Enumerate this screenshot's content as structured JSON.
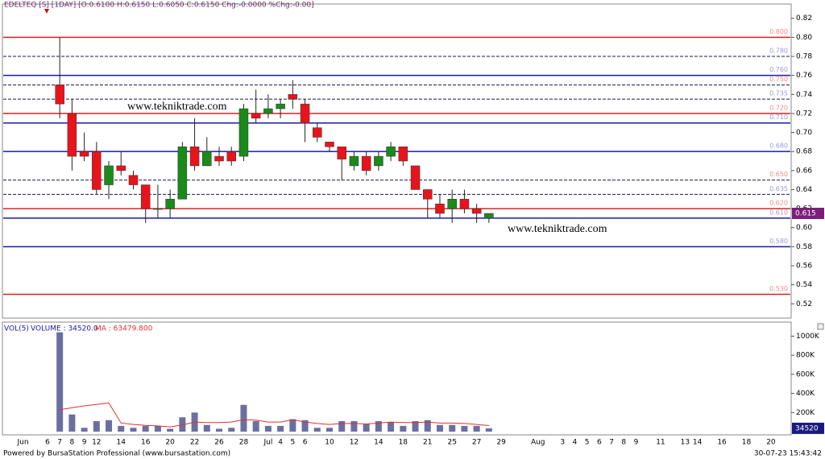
{
  "chart_data": [
    {
      "type": "candlestick",
      "title": "EDELTEQ [S] [1DAY] [O:0.6100 H:0.6150 L:0.6050 C:0.6150 Chg:-0.0000 %Chg:-0.00]",
      "categories": [
        "Jun",
        null,
        "6",
        "7",
        "8",
        "9",
        "12",
        null,
        "14",
        null,
        "16",
        null,
        "20",
        null,
        "22",
        null,
        "26",
        null,
        "28",
        null,
        "Jul",
        "4",
        "5",
        "6",
        null,
        "10",
        null,
        "12",
        null,
        "14",
        null,
        "18",
        null,
        "21",
        null,
        "25",
        null,
        "27",
        null,
        "29",
        null,
        null,
        "Aug",
        null,
        "3",
        "4",
        "5",
        "6",
        "7",
        "8",
        "9",
        null,
        "11",
        null,
        "13",
        "14",
        null,
        "16",
        null,
        "18",
        null,
        "20"
      ],
      "open": [
        null,
        null,
        null,
        0.75,
        0.72,
        0.68,
        0.68,
        0.645,
        0.665,
        0.655,
        0.645,
        0.62,
        0.62,
        0.63,
        0.685,
        0.665,
        0.675,
        0.68,
        0.675,
        0.72,
        0.72,
        0.725,
        0.74,
        0.73,
        0.705,
        0.69,
        0.685,
        0.665,
        0.675,
        0.665,
        0.675,
        0.685,
        0.665,
        0.64,
        0.625,
        0.62,
        0.63,
        0.62,
        0.61,
        null,
        null,
        null,
        null,
        null,
        null,
        null,
        null,
        null,
        null,
        null,
        null,
        null,
        null,
        null,
        null,
        null,
        null,
        null,
        null,
        null,
        null,
        null
      ],
      "high": [
        null,
        null,
        null,
        0.8,
        0.735,
        0.7,
        0.69,
        0.67,
        0.68,
        0.66,
        0.645,
        0.645,
        0.64,
        0.69,
        0.715,
        0.695,
        0.685,
        0.685,
        0.73,
        0.745,
        0.74,
        0.735,
        0.755,
        0.735,
        0.71,
        0.69,
        0.685,
        0.68,
        0.68,
        0.68,
        0.69,
        0.685,
        0.665,
        0.64,
        0.635,
        0.64,
        0.64,
        0.625,
        0.615,
        null,
        null,
        null,
        null,
        null,
        null,
        null,
        null,
        null,
        null,
        null,
        null,
        null,
        null,
        null,
        null,
        null,
        null,
        null,
        null,
        null,
        null,
        null
      ],
      "low": [
        null,
        null,
        null,
        0.715,
        0.66,
        0.67,
        0.635,
        0.63,
        0.655,
        0.64,
        0.605,
        0.61,
        0.61,
        0.63,
        0.66,
        0.665,
        0.665,
        0.665,
        0.67,
        0.71,
        0.715,
        0.715,
        0.725,
        0.69,
        0.69,
        0.68,
        0.65,
        0.66,
        0.655,
        0.66,
        0.67,
        0.665,
        0.64,
        0.61,
        0.61,
        0.605,
        0.615,
        0.605,
        0.605,
        null,
        null,
        null,
        null,
        null,
        null,
        null,
        null,
        null,
        null,
        null,
        null,
        null,
        null,
        null,
        null,
        null,
        null,
        null,
        null,
        null,
        null,
        null
      ],
      "close": [
        null,
        null,
        null,
        0.73,
        0.675,
        0.675,
        0.64,
        0.665,
        0.66,
        0.645,
        0.62,
        0.62,
        0.63,
        0.685,
        0.665,
        0.68,
        0.67,
        0.67,
        0.725,
        0.715,
        0.725,
        0.73,
        0.735,
        0.71,
        0.695,
        0.685,
        0.672,
        0.675,
        0.66,
        0.675,
        0.685,
        0.67,
        0.64,
        0.63,
        0.615,
        0.63,
        0.62,
        0.615,
        0.615,
        null,
        null,
        null,
        null,
        null,
        null,
        null,
        null,
        null,
        null,
        null,
        null,
        null,
        null,
        null,
        null,
        null,
        null,
        null,
        null,
        null,
        null,
        null
      ],
      "up_color": "#1a8a1a",
      "down_color": "#e8141b",
      "ylim": [
        0.505,
        0.835
      ],
      "yticks": [
        0.52,
        0.54,
        0.56,
        0.58,
        {
          "value": 0.6,
          "label": "0.60"
        },
        0.62,
        0.64,
        0.66,
        0.68,
        {
          "value": 0.7,
          "label": "0.70"
        },
        0.72,
        0.74,
        0.76,
        0.78,
        {
          "value": 0.8,
          "label": "0.80"
        },
        0.82
      ],
      "levels": [
        {
          "value": 0.8,
          "label": "0.800",
          "color": "#e02020",
          "dashed": false,
          "label_color": "#f08a8a"
        },
        {
          "value": 0.78,
          "label": "0.780",
          "color": "#1a1a50",
          "dashed": true,
          "label_color": "#9a9ad8"
        },
        {
          "value": 0.76,
          "label": "0.760",
          "color": "#1a1aa8",
          "dashed": false,
          "label_color": "#9a9ad8"
        },
        {
          "value": 0.75,
          "label": "0.750",
          "color": "#1a1a50",
          "dashed": true,
          "label_color": "#f08a8a"
        },
        {
          "value": 0.735,
          "label": "0.735",
          "color": "#1a1a50",
          "dashed": true,
          "label_color": "#9a9ad8"
        },
        {
          "value": 0.72,
          "label": "0.720",
          "color": "#e02020",
          "dashed": false,
          "label_color": "#f08a8a"
        },
        {
          "value": 0.71,
          "label": "0.710",
          "color": "#1a1aa8",
          "dashed": false,
          "label_color": "#9a9ad8"
        },
        {
          "value": 0.68,
          "label": "0.680",
          "color": "#1a1aa8",
          "dashed": false,
          "label_color": "#9a9ad8"
        },
        {
          "value": 0.65,
          "label": "0.650",
          "color": "#1a1a50",
          "dashed": true,
          "label_color": "#f08a8a"
        },
        {
          "value": 0.635,
          "label": "0.635",
          "color": "#1a1a50",
          "dashed": true,
          "label_color": "#9a9ad8"
        },
        {
          "value": 0.62,
          "label": "0.620",
          "color": "#e02020",
          "dashed": false,
          "label_color": "#f08a8a"
        },
        {
          "value": 0.61,
          "label": "0.610",
          "color": "#1a1aa8",
          "dashed": false,
          "label_color": "#9a9ad8"
        },
        {
          "value": 0.58,
          "label": "0.580",
          "color": "#1a1aa8",
          "dashed": false,
          "label_color": "#9a9ad8"
        },
        {
          "value": 0.53,
          "label": "0.530",
          "color": "#e02020",
          "dashed": false,
          "label_color": "#f08a8a"
        }
      ],
      "last_price": {
        "value": 0.615,
        "label": "0.615"
      },
      "watermarks": [
        "www.tekniktrade.com",
        "www.tekniktrade.com"
      ]
    },
    {
      "type": "bar",
      "title": "VOL(5)",
      "series": [
        {
          "name": "VOLUME : 34520.0",
          "color": "#6b6fa0",
          "values": [
            null,
            null,
            null,
            1040000,
            180000,
            40000,
            110000,
            120000,
            60000,
            40000,
            60000,
            60000,
            30000,
            150000,
            200000,
            70000,
            30000,
            40000,
            280000,
            110000,
            60000,
            60000,
            130000,
            120000,
            40000,
            40000,
            110000,
            110000,
            80000,
            110000,
            100000,
            60000,
            110000,
            120000,
            70000,
            70000,
            60000,
            60000,
            34520,
            null,
            null,
            null,
            null,
            null,
            null,
            null,
            null,
            null,
            null,
            null,
            null,
            null,
            null,
            null,
            null,
            null,
            null,
            null,
            null,
            null,
            null,
            null
          ]
        },
        {
          "name": "MA : 63479.800",
          "type": "line",
          "color": "#e03030",
          "values": [
            null,
            null,
            null,
            230000,
            250000,
            270000,
            285000,
            300000,
            90000,
            75000,
            65000,
            60000,
            50000,
            70000,
            100000,
            95000,
            95000,
            100000,
            125000,
            120000,
            100000,
            100000,
            125000,
            100000,
            85000,
            75000,
            85000,
            85000,
            80000,
            90000,
            100000,
            95000,
            95000,
            100000,
            90000,
            90000,
            85000,
            75000,
            63479.8,
            null,
            null,
            null,
            null,
            null,
            null,
            null,
            null,
            null,
            null,
            null,
            null,
            null,
            null,
            null,
            null,
            null,
            null,
            null,
            null,
            null,
            null,
            null
          ]
        }
      ],
      "ylim": [
        0,
        1130000
      ],
      "yticks": [
        {
          "value": 200000,
          "label": "200K"
        },
        {
          "value": 400000,
          "label": "400K"
        },
        {
          "value": 600000,
          "label": "600K"
        },
        {
          "value": 800000,
          "label": "800K"
        },
        {
          "value": 1000000,
          "label": "1000K"
        }
      ],
      "last_value": 34520
    }
  ],
  "footer": {
    "left": "Powered by BursaStation Professional (www.bursastation.com)",
    "right": "30-07-23 15:43:42"
  }
}
